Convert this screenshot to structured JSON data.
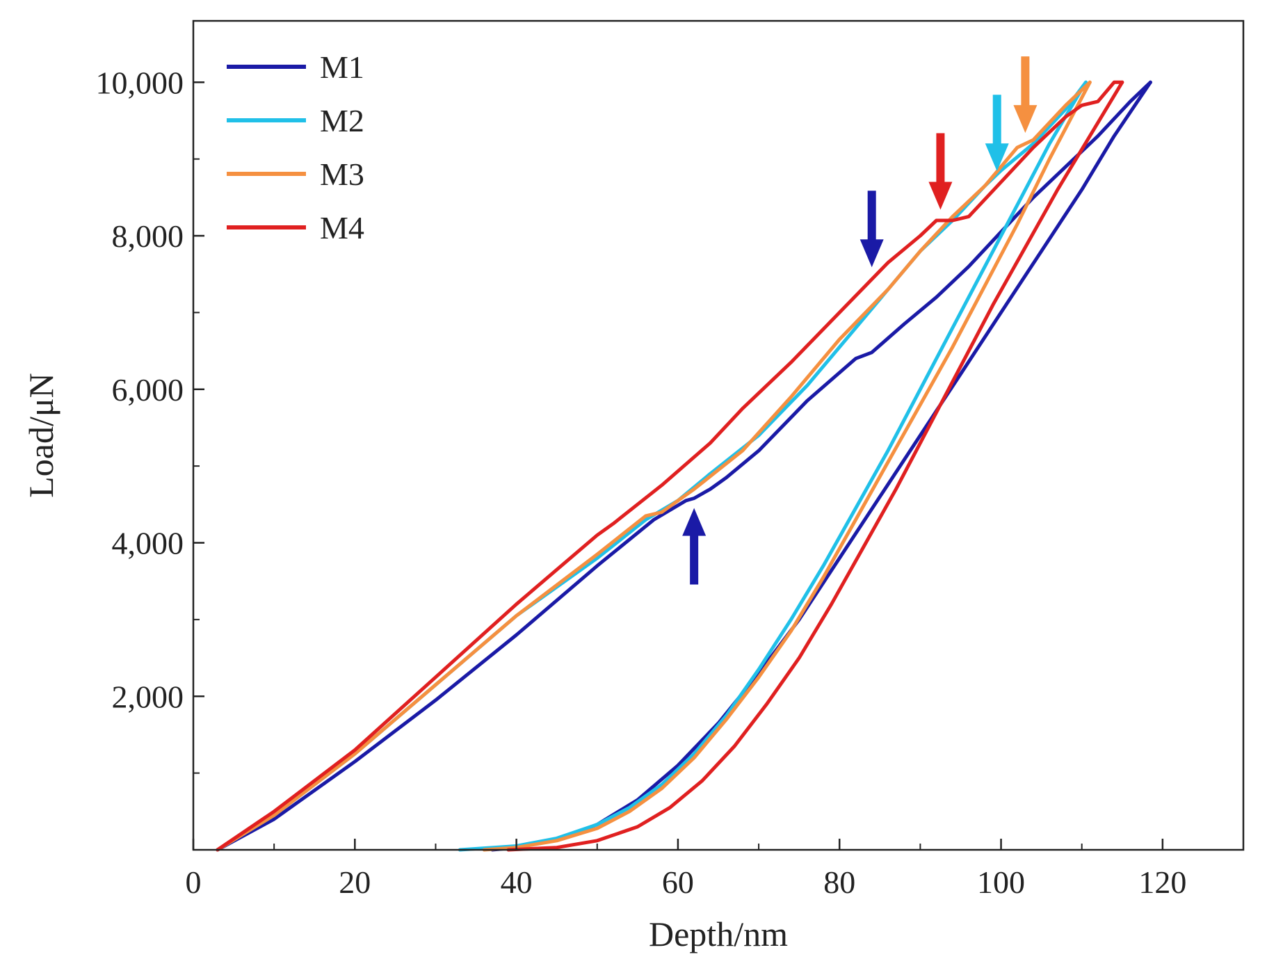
{
  "chart_data": {
    "type": "line",
    "title": "",
    "xlabel": "Depth/nm",
    "ylabel": "Load/μN",
    "xlim": [
      0,
      130
    ],
    "ylim": [
      0,
      10800
    ],
    "x_ticks": [
      0,
      20,
      40,
      60,
      80,
      100,
      120
    ],
    "x_tick_labels": [
      "0",
      "20",
      "40",
      "60",
      "80",
      "100",
      "120"
    ],
    "y_ticks": [
      2000,
      4000,
      6000,
      8000,
      10000
    ],
    "y_tick_labels": [
      "2,000",
      "4,000",
      "6,000",
      "8,000",
      "10,000"
    ],
    "grid": false,
    "legend_position": "top-left",
    "series": [
      {
        "name": "M1",
        "color": "#1a1aa6",
        "loading": [
          [
            3,
            0
          ],
          [
            10,
            400
          ],
          [
            20,
            1150
          ],
          [
            30,
            1950
          ],
          [
            40,
            2800
          ],
          [
            50,
            3700
          ],
          [
            57,
            4300
          ],
          [
            61,
            4550
          ],
          [
            62,
            4580
          ],
          [
            64,
            4700
          ],
          [
            66,
            4850
          ],
          [
            70,
            5200
          ],
          [
            76,
            5850
          ],
          [
            82,
            6400
          ],
          [
            84,
            6480
          ],
          [
            88,
            6850
          ],
          [
            92,
            7200
          ],
          [
            96,
            7600
          ],
          [
            100,
            8050
          ],
          [
            104,
            8500
          ],
          [
            108,
            8900
          ],
          [
            112,
            9300
          ],
          [
            116,
            9750
          ],
          [
            118.5,
            10000
          ]
        ],
        "unloading": [
          [
            118.5,
            10000
          ],
          [
            114,
            9300
          ],
          [
            110,
            8600
          ],
          [
            105,
            7800
          ],
          [
            100,
            7000
          ],
          [
            95,
            6200
          ],
          [
            90,
            5400
          ],
          [
            85,
            4600
          ],
          [
            80,
            3800
          ],
          [
            75,
            3000
          ],
          [
            70,
            2300
          ],
          [
            65,
            1650
          ],
          [
            60,
            1100
          ],
          [
            55,
            650
          ],
          [
            50,
            330
          ],
          [
            45,
            130
          ],
          [
            40,
            30
          ],
          [
            37,
            0
          ]
        ]
      },
      {
        "name": "M2",
        "color": "#20c0e8",
        "loading": [
          [
            3,
            0
          ],
          [
            10,
            450
          ],
          [
            20,
            1250
          ],
          [
            30,
            2150
          ],
          [
            40,
            3050
          ],
          [
            50,
            3800
          ],
          [
            56,
            4300
          ],
          [
            60,
            4550
          ],
          [
            64,
            4900
          ],
          [
            70,
            5400
          ],
          [
            76,
            6050
          ],
          [
            82,
            6800
          ],
          [
            86,
            7300
          ],
          [
            90,
            7800
          ],
          [
            94,
            8200
          ],
          [
            98,
            8650
          ],
          [
            100,
            8850
          ],
          [
            104,
            9200
          ],
          [
            108,
            9650
          ],
          [
            110.5,
            10000
          ]
        ],
        "unloading": [
          [
            110.5,
            10000
          ],
          [
            106,
            9200
          ],
          [
            102,
            8400
          ],
          [
            98,
            7600
          ],
          [
            94,
            6800
          ],
          [
            90,
            6000
          ],
          [
            86,
            5200
          ],
          [
            82,
            4450
          ],
          [
            78,
            3700
          ],
          [
            74,
            3000
          ],
          [
            70,
            2350
          ],
          [
            66,
            1750
          ],
          [
            62,
            1250
          ],
          [
            58,
            850
          ],
          [
            54,
            550
          ],
          [
            50,
            330
          ],
          [
            45,
            150
          ],
          [
            40,
            50
          ],
          [
            33,
            0
          ]
        ]
      },
      {
        "name": "M3",
        "color": "#f59040",
        "loading": [
          [
            3,
            0
          ],
          [
            10,
            450
          ],
          [
            20,
            1250
          ],
          [
            30,
            2150
          ],
          [
            40,
            3050
          ],
          [
            50,
            3850
          ],
          [
            56,
            4350
          ],
          [
            58,
            4400
          ],
          [
            62,
            4700
          ],
          [
            68,
            5200
          ],
          [
            74,
            5900
          ],
          [
            80,
            6650
          ],
          [
            86,
            7300
          ],
          [
            90,
            7800
          ],
          [
            94,
            8250
          ],
          [
            98,
            8650
          ],
          [
            102,
            9150
          ],
          [
            104,
            9250
          ],
          [
            108,
            9700
          ],
          [
            111,
            10000
          ]
        ],
        "unloading": [
          [
            111,
            10000
          ],
          [
            106,
            9000
          ],
          [
            102,
            8150
          ],
          [
            98,
            7350
          ],
          [
            94,
            6550
          ],
          [
            90,
            5800
          ],
          [
            86,
            5050
          ],
          [
            82,
            4300
          ],
          [
            78,
            3550
          ],
          [
            74,
            2850
          ],
          [
            70,
            2250
          ],
          [
            66,
            1700
          ],
          [
            62,
            1200
          ],
          [
            58,
            800
          ],
          [
            54,
            500
          ],
          [
            50,
            280
          ],
          [
            45,
            120
          ],
          [
            40,
            30
          ],
          [
            36,
            0
          ]
        ]
      },
      {
        "name": "M4",
        "color": "#e02020",
        "loading": [
          [
            3,
            0
          ],
          [
            10,
            500
          ],
          [
            20,
            1300
          ],
          [
            30,
            2250
          ],
          [
            40,
            3200
          ],
          [
            50,
            4100
          ],
          [
            52,
            4250
          ],
          [
            58,
            4750
          ],
          [
            64,
            5300
          ],
          [
            68,
            5750
          ],
          [
            74,
            6350
          ],
          [
            80,
            7000
          ],
          [
            86,
            7650
          ],
          [
            90,
            8000
          ],
          [
            92,
            8200
          ],
          [
            94,
            8200
          ],
          [
            96,
            8250
          ],
          [
            100,
            8700
          ],
          [
            104,
            9150
          ],
          [
            108,
            9550
          ],
          [
            110,
            9700
          ],
          [
            112,
            9750
          ],
          [
            114,
            10000
          ],
          [
            115,
            10000
          ]
        ],
        "unloading": [
          [
            115,
            10000
          ],
          [
            111,
            9300
          ],
          [
            107,
            8600
          ],
          [
            103,
            7850
          ],
          [
            99,
            7100
          ],
          [
            95,
            6300
          ],
          [
            91,
            5500
          ],
          [
            87,
            4700
          ],
          [
            83,
            3950
          ],
          [
            79,
            3200
          ],
          [
            75,
            2500
          ],
          [
            71,
            1900
          ],
          [
            67,
            1350
          ],
          [
            63,
            900
          ],
          [
            59,
            550
          ],
          [
            55,
            300
          ],
          [
            50,
            120
          ],
          [
            45,
            30
          ],
          [
            39,
            0
          ]
        ]
      }
    ],
    "annotations": [
      {
        "type": "arrow",
        "direction": "up",
        "color": "#1a1aa6",
        "x": 62,
        "y": 4580
      },
      {
        "type": "arrow",
        "direction": "down",
        "color": "#1a1aa6",
        "x": 84,
        "y": 7500
      },
      {
        "type": "arrow",
        "direction": "down",
        "color": "#e02020",
        "x": 92.5,
        "y": 8250
      },
      {
        "type": "arrow",
        "direction": "down",
        "color": "#20c0e8",
        "x": 99.5,
        "y": 8750
      },
      {
        "type": "arrow",
        "direction": "down",
        "color": "#f59040",
        "x": 103,
        "y": 9250
      }
    ]
  }
}
